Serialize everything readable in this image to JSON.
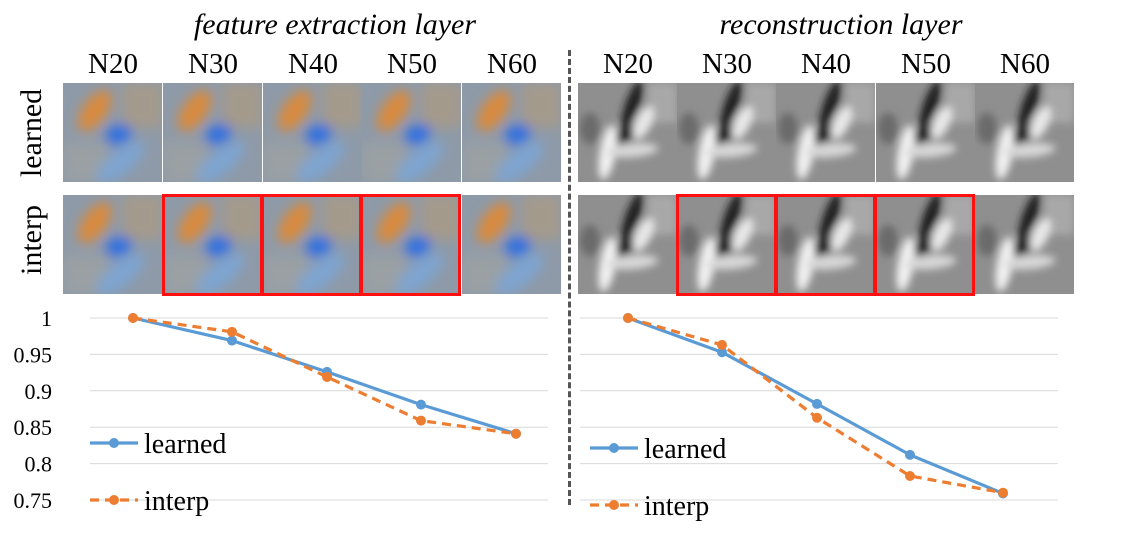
{
  "panels": [
    {
      "title": "feature extraction layer"
    },
    {
      "title": "reconstruction layer"
    }
  ],
  "columns": [
    "N20",
    "N30",
    "N40",
    "N50",
    "N60"
  ],
  "rows": [
    "learned",
    "interp"
  ],
  "highlighted_columns": [
    "N30",
    "N40",
    "N50"
  ],
  "colors": {
    "learned": "#5b9bd5",
    "interp": "#ed7d31",
    "highlight": "#ff1010",
    "grid": "#d9d9d9"
  },
  "chart_data": [
    {
      "type": "line",
      "categories": [
        "N20",
        "N30",
        "N40",
        "N50",
        "N60"
      ],
      "ylim": [
        0.75,
        1.0
      ],
      "yticks": [
        "1",
        "0.95",
        "0.9",
        "0.85",
        "0.8",
        "0.75"
      ],
      "ytick_values": [
        1.0,
        0.95,
        0.9,
        0.85,
        0.8,
        0.75
      ],
      "grid": true,
      "legend": "bottom-left",
      "series": [
        {
          "name": "learned",
          "values": [
            1.0,
            0.969,
            0.926,
            0.881,
            0.841
          ],
          "style": "solid"
        },
        {
          "name": "interp",
          "values": [
            1.0,
            0.981,
            0.919,
            0.859,
            0.841
          ],
          "style": "dashed"
        }
      ]
    },
    {
      "type": "line",
      "categories": [
        "N20",
        "N30",
        "N40",
        "N50",
        "N60"
      ],
      "ylim": [
        0.75,
        1.0
      ],
      "grid": true,
      "legend": "bottom-left",
      "series": [
        {
          "name": "learned",
          "values": [
            1.0,
            0.953,
            0.882,
            0.812,
            0.759
          ],
          "style": "solid"
        },
        {
          "name": "interp",
          "values": [
            1.0,
            0.963,
            0.863,
            0.783,
            0.76
          ],
          "style": "dashed"
        }
      ]
    }
  ]
}
